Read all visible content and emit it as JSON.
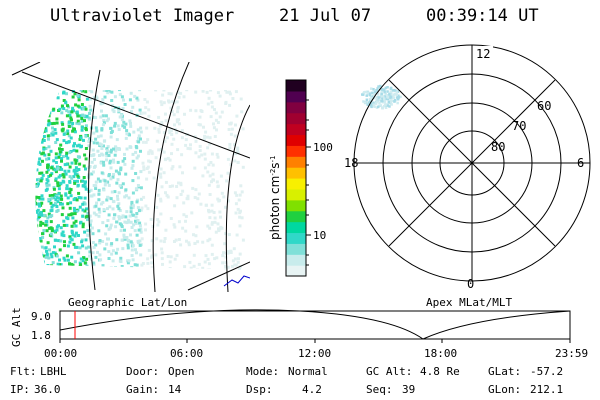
{
  "header": {
    "instrument": "Ultraviolet Imager",
    "date": "21 Jul 07",
    "time": "00:39:14 UT"
  },
  "colorbar": {
    "label_html": "photon cm<tspan baseline-shift=\"super\" font-size=\"7\">-2</tspan>s<tspan baseline-shift=\"super\" font-size=\"7\">-1</tspan>",
    "label": "photon cm-2s-1",
    "scale": "log",
    "ticks": [
      "100",
      "10"
    ],
    "colors": [
      "#e8f4f4",
      "#c8ecec",
      "#80e0d8",
      "#30d8c8",
      "#00d8a0",
      "#20d040",
      "#80e000",
      "#d8f000",
      "#f8f000",
      "#ffc000",
      "#ff8000",
      "#ff3000",
      "#e00000",
      "#c00020",
      "#a00030",
      "#800040",
      "#500050",
      "#200020"
    ]
  },
  "polar_plot": {
    "mlt_labels": {
      "top": "12",
      "left": "18",
      "right": "6",
      "bottom": "0"
    },
    "lat_labels": [
      "60",
      "70",
      "80"
    ]
  },
  "panel_labels": {
    "left": "Geographic Lat/Lon",
    "right": "Apex MLat/MLT"
  },
  "altitude_strip": {
    "ylabel": "GC Alt",
    "y_ticks": [
      "9.0",
      "1.8"
    ],
    "x_ticks": [
      "00:00",
      "06:00",
      "12:00",
      "18:00",
      "23:59"
    ],
    "marker_time": "00:39"
  },
  "footer": {
    "flt_label": "Flt:",
    "flt_value": "LBHL",
    "ip_label": "IP:",
    "ip_value": "36.0",
    "door_label": "Door:",
    "door_value": "Open",
    "gain_label": "Gain:",
    "gain_value": "14",
    "mode_label": "Mode:",
    "mode_value": "Normal",
    "dsp_label": "Dsp:",
    "dsp_value": "4.2",
    "gcalt_label": "GC Alt:",
    "gcalt_value": "4.8 Re",
    "seq_label": "Seq:",
    "seq_value": "39",
    "glat_label": "GLat:",
    "glat_value": "-57.2",
    "glon_label": "GLon:",
    "glon_value": "212.1"
  },
  "colors": {
    "marker": "#ff0000",
    "aurora_dense": "#30d8c8",
    "aurora_light": "#c8ecec",
    "aurora_green": "#20d040"
  }
}
